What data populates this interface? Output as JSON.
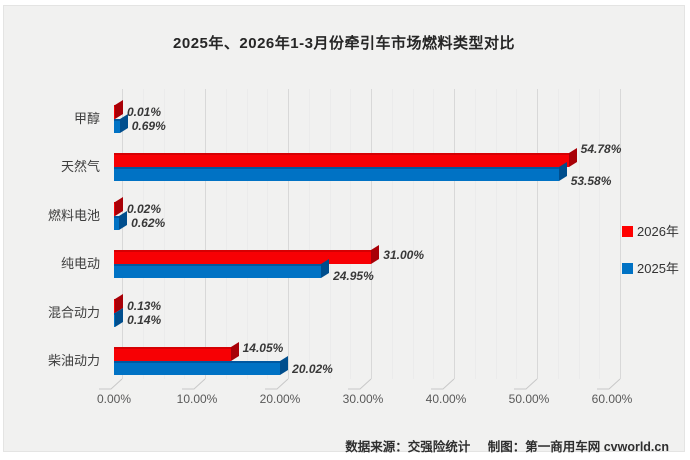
{
  "title": "2025年、2026年1-3月份牵引车市场燃料类型对比",
  "chart_data": {
    "type": "bar",
    "orientation": "horizontal",
    "style": "3d",
    "title": "2025年、2026年1-3月份牵引车市场燃料类型对比",
    "categories": [
      "甲醇",
      "天然气",
      "燃料电池",
      "纯电动",
      "混合动力",
      "柴油动力"
    ],
    "series": [
      {
        "name": "2026年",
        "color": "#f70004",
        "values": [
          0.01,
          54.78,
          0.02,
          31.0,
          0.13,
          14.05
        ],
        "labels": [
          "0.01%",
          "54.78%",
          "0.02%",
          "31.00%",
          "0.13%",
          "14.05%"
        ]
      },
      {
        "name": "2025年",
        "color": "#0072c4",
        "values": [
          0.69,
          53.58,
          0.62,
          24.95,
          0.14,
          20.02
        ],
        "labels": [
          "0.69%",
          "53.58%",
          "0.62%",
          "24.95%",
          "0.14%",
          "20.02%"
        ]
      }
    ],
    "xlim": [
      0,
      60
    ],
    "x_ticks": [
      "0.00%",
      "10.00%",
      "20.00%",
      "30.00%",
      "40.00%",
      "50.00%",
      "60.00%"
    ],
    "grid": true,
    "legend_position": "right"
  },
  "legend": {
    "items": [
      "2026年",
      "2025年"
    ]
  },
  "footer": {
    "source": "数据来源：交强险统计",
    "credit": "制图：第一商用车网 cvworld.cn"
  }
}
